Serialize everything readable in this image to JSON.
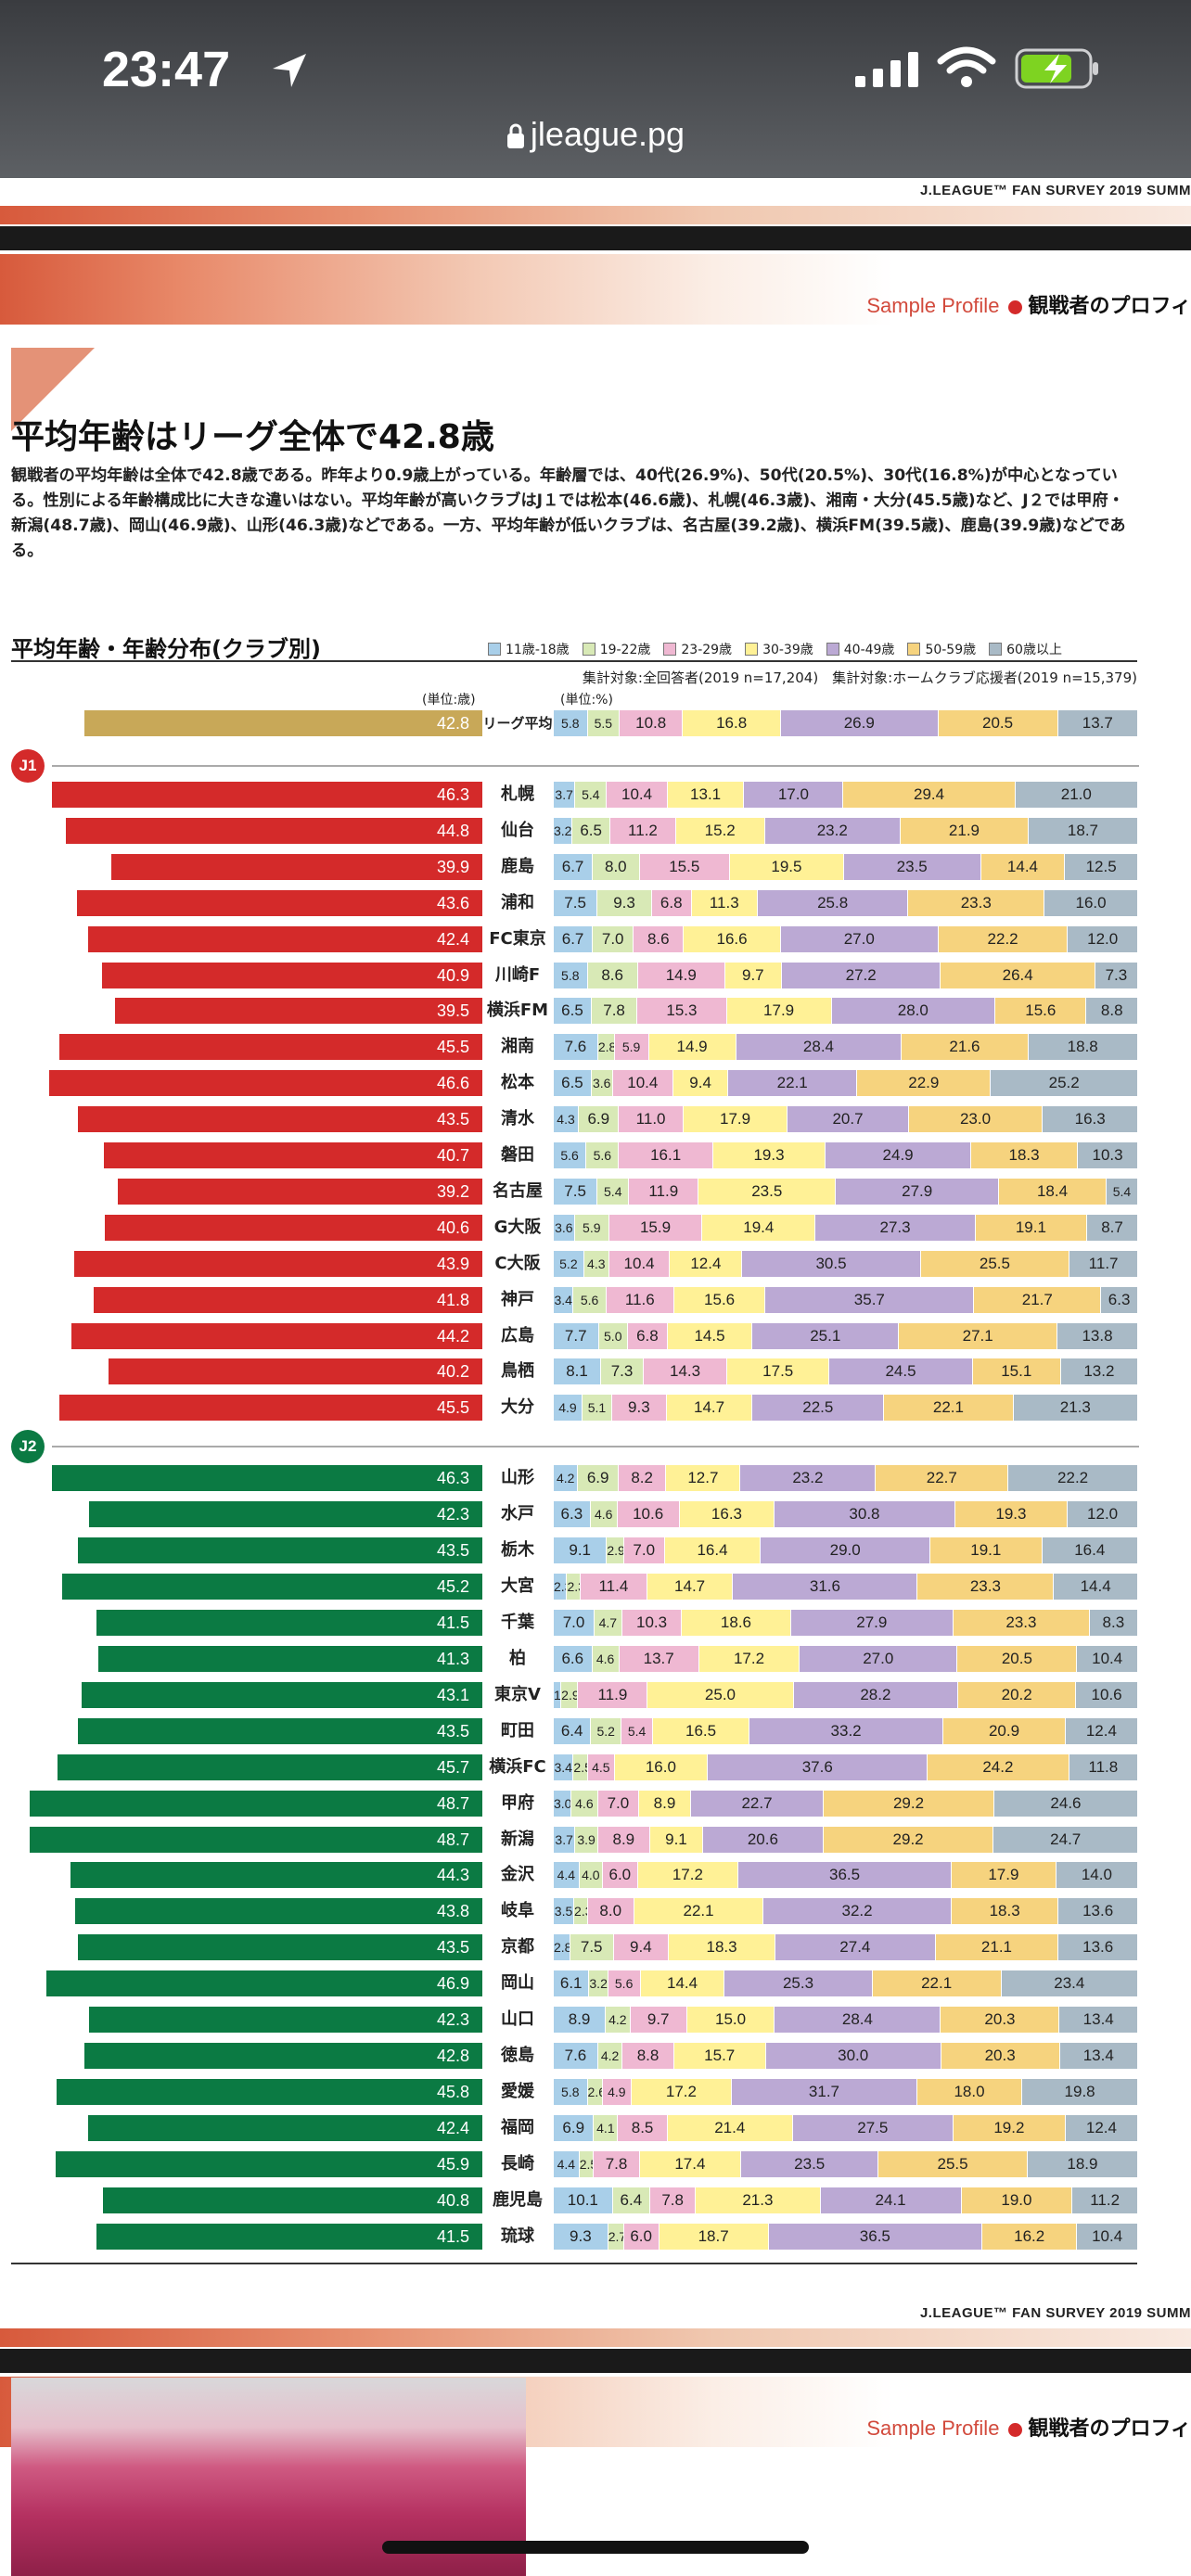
{
  "status": {
    "time": "23:47",
    "url": "jleague.pg"
  },
  "header": {
    "survey": "J.LEAGUE™ FAN SURVEY 2019 SUMM",
    "sample": "Sample Profile",
    "section": "観戦者のプロフィ"
  },
  "article": {
    "title": "平均年齢はリーグ全体で42.8歳",
    "body": "観戦者の平均年齢は全体で42.8歳である。昨年より0.9歳上がっている。年齢層では、40代(26.9%)、50代(20.5%)、30代(16.8%)が中心となっている。性別による年齢構成比に大きな違いはない。平均年齢が高いクラブはJ１では松本(46.6歳)、札幌(46.3歳)、湘南・大分(45.5歳)など、J２では甲府・新潟(48.7歳)、岡山(46.9歳)、山形(46.3歳)などである。一方、平均年齢が低いクラブは、名古屋(39.2歳)、横浜FM(39.5歳)、鹿島(39.9歳)などである。"
  },
  "chart_title": "平均年齢・年齢分布(クラブ別)",
  "note": "集計対象:全回答者(2019 n=17,204)　集計対象:ホームクラブ応援者(2019 n=15,379)",
  "unit_age": "(単位:歳)",
  "unit_pct": "(単位:%)",
  "sections": {
    "j1": "J1",
    "j2": "J2"
  },
  "colors": {
    "j1": "#d42a2a",
    "j2": "#0b7a43",
    "league": "#c8a858",
    "segments": [
      "#a9cfe9",
      "#d8e9b6",
      "#efb8d2",
      "#fff196",
      "#bba9d4",
      "#f6d37e",
      "#a9bac6"
    ]
  },
  "chart_data": {
    "type": "bar",
    "age_groups": [
      "11歳-18歳",
      "19-22歳",
      "23-29歳",
      "30-39歳",
      "40-49歳",
      "50-59歳",
      "60歳以上"
    ],
    "league": {
      "label": "リーグ平均",
      "avg": "42.8",
      "dist": [
        "5.8",
        "5.5",
        "10.8",
        "16.8",
        "26.9",
        "20.5",
        "13.7"
      ]
    },
    "j1": [
      {
        "club": "札幌",
        "avg": "46.3",
        "dist": [
          "3.7",
          "5.4",
          "10.4",
          "13.1",
          "17.0",
          "29.4",
          "21.0"
        ]
      },
      {
        "club": "仙台",
        "avg": "44.8",
        "dist": [
          "3.2",
          "6.5",
          "11.2",
          "15.2",
          "23.2",
          "21.9",
          "18.7"
        ]
      },
      {
        "club": "鹿島",
        "avg": "39.9",
        "dist": [
          "6.7",
          "8.0",
          "15.5",
          "19.5",
          "23.5",
          "14.4",
          "12.5"
        ]
      },
      {
        "club": "浦和",
        "avg": "43.6",
        "dist": [
          "7.5",
          "9.3",
          "6.8",
          "11.3",
          "25.8",
          "23.3",
          "16.0"
        ]
      },
      {
        "club": "FC東京",
        "avg": "42.4",
        "dist": [
          "6.7",
          "7.0",
          "8.6",
          "16.6",
          "27.0",
          "22.2",
          "12.0"
        ]
      },
      {
        "club": "川崎F",
        "avg": "40.9",
        "dist": [
          "5.8",
          "8.6",
          "14.9",
          "9.7",
          "27.2",
          "26.4",
          "7.3"
        ]
      },
      {
        "club": "横浜FM",
        "avg": "39.5",
        "dist": [
          "6.5",
          "7.8",
          "15.3",
          "17.9",
          "28.0",
          "15.6",
          "8.8"
        ]
      },
      {
        "club": "湘南",
        "avg": "45.5",
        "dist": [
          "7.6",
          "2.8",
          "5.9",
          "14.9",
          "28.4",
          "21.6",
          "18.8"
        ]
      },
      {
        "club": "松本",
        "avg": "46.6",
        "dist": [
          "6.5",
          "3.6",
          "10.4",
          "9.4",
          "22.1",
          "22.9",
          "25.2"
        ]
      },
      {
        "club": "清水",
        "avg": "43.5",
        "dist": [
          "4.3",
          "6.9",
          "11.0",
          "17.9",
          "20.7",
          "23.0",
          "16.3"
        ]
      },
      {
        "club": "磐田",
        "avg": "40.7",
        "dist": [
          "5.6",
          "5.6",
          "16.1",
          "19.3",
          "24.9",
          "18.3",
          "10.3"
        ]
      },
      {
        "club": "名古屋",
        "avg": "39.2",
        "dist": [
          "7.5",
          "5.4",
          "11.9",
          "23.5",
          "27.9",
          "18.4",
          "5.4"
        ]
      },
      {
        "club": "G大阪",
        "avg": "40.6",
        "dist": [
          "3.6",
          "5.9",
          "15.9",
          "19.4",
          "27.3",
          "19.1",
          "8.7"
        ]
      },
      {
        "club": "C大阪",
        "avg": "43.9",
        "dist": [
          "5.2",
          "4.3",
          "10.4",
          "12.4",
          "30.5",
          "25.5",
          "11.7"
        ]
      },
      {
        "club": "神戸",
        "avg": "41.8",
        "dist": [
          "3.4",
          "5.6",
          "11.6",
          "15.6",
          "35.7",
          "21.7",
          "6.3"
        ]
      },
      {
        "club": "広島",
        "avg": "44.2",
        "dist": [
          "7.7",
          "5.0",
          "6.8",
          "14.5",
          "25.1",
          "27.1",
          "13.8"
        ]
      },
      {
        "club": "鳥栖",
        "avg": "40.2",
        "dist": [
          "8.1",
          "7.3",
          "14.3",
          "17.5",
          "24.5",
          "15.1",
          "13.2"
        ]
      },
      {
        "club": "大分",
        "avg": "45.5",
        "dist": [
          "4.9",
          "5.1",
          "9.3",
          "14.7",
          "22.5",
          "22.1",
          "21.3"
        ]
      }
    ],
    "j2": [
      {
        "club": "山形",
        "avg": "46.3",
        "dist": [
          "4.2",
          "6.9",
          "8.2",
          "12.7",
          "23.2",
          "22.7",
          "22.2"
        ]
      },
      {
        "club": "水戸",
        "avg": "42.3",
        "dist": [
          "6.3",
          "4.6",
          "10.6",
          "16.3",
          "30.8",
          "19.3",
          "12.0"
        ]
      },
      {
        "club": "栃木",
        "avg": "43.5",
        "dist": [
          "9.1",
          "2.9",
          "7.0",
          "16.4",
          "29.0",
          "19.1",
          "16.4"
        ]
      },
      {
        "club": "大宮",
        "avg": "45.2",
        "dist": [
          "2.3",
          "2.3",
          "11.4",
          "14.7",
          "31.6",
          "23.3",
          "14.4"
        ]
      },
      {
        "club": "千葉",
        "avg": "41.5",
        "dist": [
          "7.0",
          "4.7",
          "10.3",
          "18.6",
          "27.9",
          "23.3",
          "8.3"
        ]
      },
      {
        "club": "柏",
        "avg": "41.3",
        "dist": [
          "6.6",
          "4.6",
          "13.7",
          "17.2",
          "27.0",
          "20.5",
          "10.4"
        ]
      },
      {
        "club": "東京V",
        "avg": "43.1",
        "dist": [
          "1.3",
          "2.9",
          "11.9",
          "25.0",
          "28.2",
          "20.2",
          "10.6"
        ]
      },
      {
        "club": "町田",
        "avg": "43.5",
        "dist": [
          "6.4",
          "5.2",
          "5.4",
          "16.5",
          "33.2",
          "20.9",
          "12.4"
        ]
      },
      {
        "club": "横浜FC",
        "avg": "45.7",
        "dist": [
          "3.4",
          "2.5",
          "4.5",
          "16.0",
          "37.6",
          "24.2",
          "11.8"
        ]
      },
      {
        "club": "甲府",
        "avg": "48.7",
        "dist": [
          "3.0",
          "4.6",
          "7.0",
          "8.9",
          "22.7",
          "29.2",
          "24.6"
        ]
      },
      {
        "club": "新潟",
        "avg": "48.7",
        "dist": [
          "3.7",
          "3.9",
          "8.9",
          "9.1",
          "20.6",
          "29.2",
          "24.7"
        ]
      },
      {
        "club": "金沢",
        "avg": "44.3",
        "dist": [
          "4.4",
          "4.0",
          "6.0",
          "17.2",
          "36.5",
          "17.9",
          "14.0"
        ]
      },
      {
        "club": "岐阜",
        "avg": "43.8",
        "dist": [
          "3.5",
          "2.3",
          "8.0",
          "22.1",
          "32.2",
          "18.3",
          "13.6"
        ]
      },
      {
        "club": "京都",
        "avg": "43.5",
        "dist": [
          "2.8",
          "7.5",
          "9.4",
          "18.3",
          "27.4",
          "21.1",
          "13.6"
        ]
      },
      {
        "club": "岡山",
        "avg": "46.9",
        "dist": [
          "6.1",
          "3.2",
          "5.6",
          "14.4",
          "25.3",
          "22.1",
          "23.4"
        ]
      },
      {
        "club": "山口",
        "avg": "42.3",
        "dist": [
          "8.9",
          "4.2",
          "9.7",
          "15.0",
          "28.4",
          "20.3",
          "13.4"
        ]
      },
      {
        "club": "徳島",
        "avg": "42.8",
        "dist": [
          "7.6",
          "4.2",
          "8.8",
          "15.7",
          "30.0",
          "20.3",
          "13.4"
        ]
      },
      {
        "club": "愛媛",
        "avg": "45.8",
        "dist": [
          "5.8",
          "2.6",
          "4.9",
          "17.2",
          "31.7",
          "18.0",
          "19.8"
        ]
      },
      {
        "club": "福岡",
        "avg": "42.4",
        "dist": [
          "6.9",
          "4.1",
          "8.5",
          "21.4",
          "27.5",
          "19.2",
          "12.4"
        ]
      },
      {
        "club": "長崎",
        "avg": "45.9",
        "dist": [
          "4.4",
          "2.5",
          "7.8",
          "17.4",
          "23.5",
          "25.5",
          "18.9"
        ]
      },
      {
        "club": "鹿児島",
        "avg": "40.8",
        "dist": [
          "10.1",
          "6.4",
          "7.8",
          "21.3",
          "24.1",
          "19.0",
          "11.2"
        ]
      },
      {
        "club": "琉球",
        "avg": "41.5",
        "dist": [
          "9.3",
          "2.7",
          "6.0",
          "18.7",
          "36.5",
          "16.2",
          "10.4"
        ]
      }
    ]
  }
}
